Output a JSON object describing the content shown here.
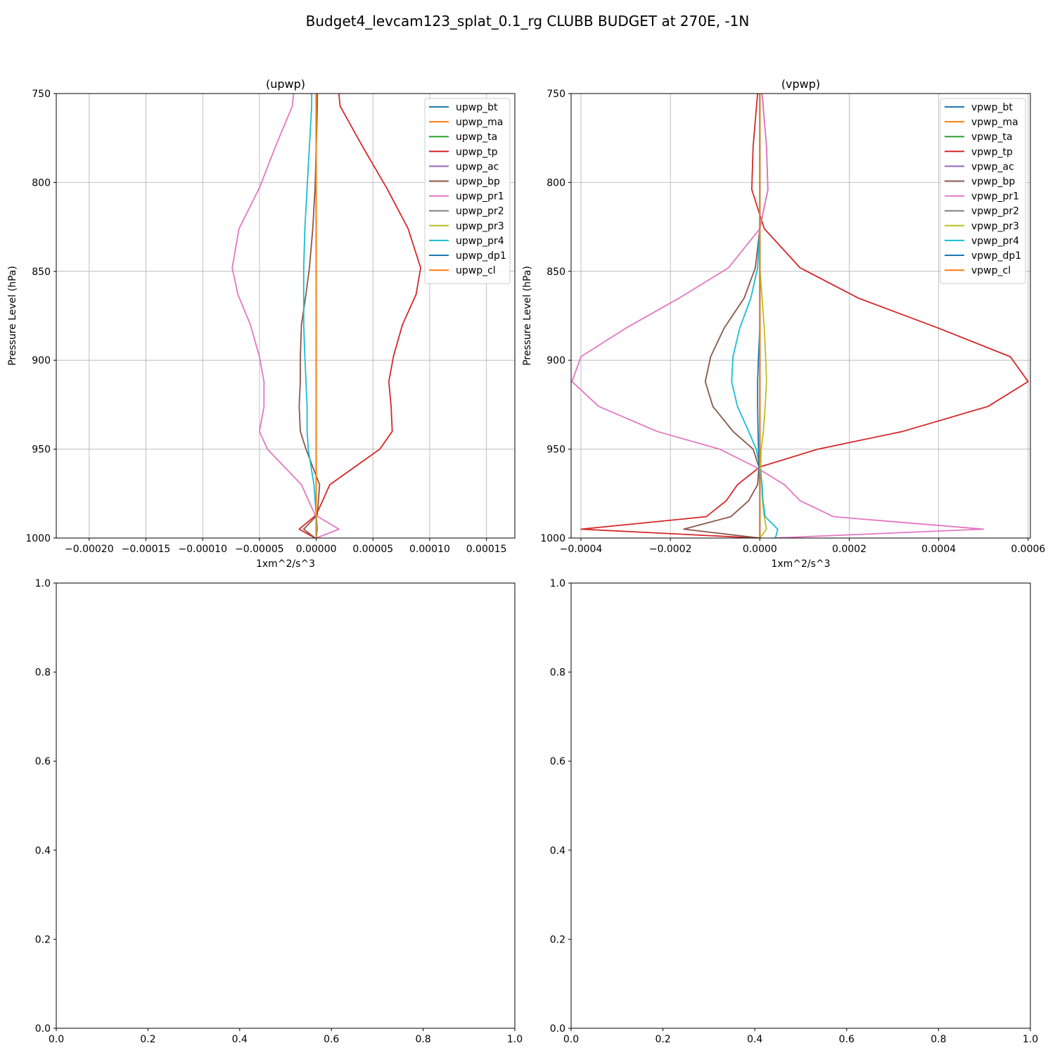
{
  "figure": {
    "suptitle": "Budget4_levcam123_splat_0.1_rg CLUBB BUDGET at 270E, -1N"
  },
  "chart_data": [
    {
      "type": "line",
      "title": "(upwp)",
      "xlabel": "1xm^2/s^3",
      "ylabel": "Pressure Level (hPa)",
      "xlim": [
        -0.000229,
        0.000175
      ],
      "ylim": [
        1000,
        750
      ],
      "y_inverted": true,
      "x_ticks": [
        -0.0002,
        -0.00015,
        -0.0001,
        -5e-05,
        0,
        5e-05,
        0.0001,
        0.00015
      ],
      "x_tick_labels": [
        "−0.00020",
        "−0.00015",
        "−0.00010",
        "−0.00005",
        "0.00000",
        "0.00005",
        "0.00010",
        "0.00015"
      ],
      "y_ticks": [
        750,
        800,
        850,
        900,
        950,
        1000
      ],
      "y_tick_labels": [
        "750",
        "800",
        "850",
        "900",
        "950",
        "1000"
      ],
      "grid": true,
      "legend_position": "top-right",
      "y": [
        750,
        757,
        780,
        803,
        826,
        848,
        863,
        880,
        898,
        912,
        926,
        940,
        950,
        970,
        987,
        995,
        1000
      ],
      "series": [
        {
          "name": "upwp_bt",
          "color": "#1f77b4",
          "values": [
            0,
            0,
            0,
            0,
            0,
            0,
            0,
            0,
            0,
            0,
            0,
            0,
            0,
            0,
            0,
            0,
            0
          ]
        },
        {
          "name": "upwp_ma",
          "color": "#ff7f0e",
          "values": [
            0,
            0,
            0,
            0,
            0,
            0,
            0,
            0,
            0,
            0,
            0,
            0,
            0,
            0,
            0,
            0,
            0
          ]
        },
        {
          "name": "upwp_ta",
          "color": "#2ca02c",
          "values": [
            0,
            0,
            0,
            0,
            0,
            0,
            0,
            0,
            0,
            0,
            0,
            0,
            0,
            0,
            0,
            0,
            0
          ]
        },
        {
          "name": "upwp_tp",
          "color": "#d62728",
          "values": [
            2e-05,
            2.1e-05,
            4.1e-05,
            6.2e-05,
            8.1e-05,
            9.2e-05,
            8.8e-05,
            7.6e-05,
            6.8e-05,
            6.4e-05,
            6.6e-05,
            6.7e-05,
            5.6e-05,
            1.2e-05,
            0,
            -1.5e-05,
            -1e-06
          ]
        },
        {
          "name": "upwp_ac",
          "color": "#9467bd",
          "values": [
            0,
            0,
            0,
            0,
            0,
            0,
            0,
            0,
            0,
            0,
            0,
            0,
            0,
            0,
            0,
            0,
            0
          ]
        },
        {
          "name": "upwp_bp",
          "color": "#8c564b",
          "values": [
            1e-06,
            1e-06,
            0,
            -1e-06,
            -3e-06,
            -6e-06,
            -9e-06,
            -1.3e-05,
            -1.4e-05,
            -1.4e-05,
            -1.5e-05,
            -1.4e-05,
            -9e-06,
            3e-06,
            1e-06,
            -1.1e-05,
            -1e-06
          ]
        },
        {
          "name": "upwp_pr1",
          "color": "#e377c2",
          "values": [
            -2e-05,
            -2.1e-05,
            -3.6e-05,
            -5e-05,
            -6.8e-05,
            -7.4e-05,
            -6.9e-05,
            -5.8e-05,
            -5e-05,
            -4.6e-05,
            -4.6e-05,
            -5e-05,
            -4.3e-05,
            -1.3e-05,
            -1e-06,
            2e-05,
            0
          ]
        },
        {
          "name": "upwp_pr2",
          "color": "#7f7f7f",
          "values": [
            0,
            0,
            0,
            0,
            0,
            0,
            0,
            0,
            0,
            0,
            0,
            0,
            0,
            0,
            0,
            0,
            0
          ]
        },
        {
          "name": "upwp_pr3",
          "color": "#bcbd22",
          "values": [
            0,
            0,
            0,
            0,
            0,
            0,
            0,
            0,
            0,
            0,
            0,
            0,
            0,
            0,
            0,
            0,
            0
          ]
        },
        {
          "name": "upwp_pr4",
          "color": "#17becf",
          "values": [
            -4e-06,
            -4e-06,
            -6e-06,
            -8e-06,
            -1e-05,
            -1.1e-05,
            -1.1e-05,
            -1.1e-05,
            -1e-05,
            -9e-06,
            -8e-06,
            -8e-06,
            -7e-06,
            -2e-06,
            0,
            1e-06,
            0
          ]
        },
        {
          "name": "upwp_dp1",
          "color": "#1f77b4",
          "values": [
            0,
            0,
            0,
            0,
            0,
            0,
            0,
            0,
            0,
            0,
            0,
            0,
            0,
            0,
            0,
            0,
            0
          ]
        },
        {
          "name": "upwp_cl",
          "color": "#ff7f0e",
          "values": [
            0,
            0,
            0,
            0,
            0,
            0,
            0,
            0,
            0,
            0,
            0,
            0,
            0,
            0,
            0,
            0,
            0
          ]
        }
      ]
    },
    {
      "type": "line",
      "title": "(vpwp)",
      "xlabel": "1xm^2/s^3",
      "ylabel": "Pressure Level (hPa)",
      "xlim": [
        -0.000422,
        0.000605
      ],
      "ylim": [
        1000,
        750
      ],
      "y_inverted": true,
      "x_ticks": [
        -0.0004,
        -0.0002,
        0,
        0.0002,
        0.0004,
        0.0006
      ],
      "x_tick_labels": [
        "−0.0004",
        "−0.0002",
        "0.0000",
        "0.0002",
        "0.0004",
        "0.0006"
      ],
      "y_ticks": [
        750,
        800,
        850,
        900,
        950,
        1000
      ],
      "y_tick_labels": [
        "750",
        "800",
        "850",
        "900",
        "950",
        "1000"
      ],
      "grid": true,
      "legend_position": "top-right",
      "y": [
        750,
        780,
        804,
        826,
        848,
        865,
        882,
        898,
        912,
        926,
        940,
        950,
        960,
        970,
        979,
        988,
        995,
        1000
      ],
      "series": [
        {
          "name": "vpwp_bt",
          "color": "#1f77b4",
          "values": [
            0,
            0,
            0,
            0,
            0,
            0,
            0,
            0,
            0,
            0,
            0,
            0,
            0,
            0,
            0,
            0,
            0,
            0
          ]
        },
        {
          "name": "vpwp_ma",
          "color": "#ff7f0e",
          "values": [
            0,
            0,
            0,
            0,
            0,
            0,
            0,
            0,
            0,
            0,
            0,
            0,
            0,
            0,
            0,
            0,
            0,
            0
          ]
        },
        {
          "name": "vpwp_ta",
          "color": "#2ca02c",
          "values": [
            0,
            0,
            0,
            0,
            0,
            0,
            0,
            0,
            0,
            0,
            0,
            0,
            0,
            0,
            0,
            0,
            0,
            0
          ]
        },
        {
          "name": "vpwp_tp",
          "color": "#d62728",
          "values": [
            -5e-06,
            -1.5e-05,
            -1.8e-05,
            1e-05,
            9e-05,
            0.00022,
            0.0004,
            0.00056,
            0.0006,
            0.00051,
            0.00032,
            0.00013,
            0,
            -5e-05,
            -7.5e-05,
            -0.00012,
            -0.0004,
            -5e-06
          ]
        },
        {
          "name": "vpwp_ac",
          "color": "#9467bd",
          "values": [
            5e-06,
            1.5e-05,
            1.8e-05,
            0,
            0,
            0,
            0,
            0,
            0,
            0,
            0,
            0,
            0,
            0,
            0,
            0,
            0,
            0
          ]
        },
        {
          "name": "vpwp_bp",
          "color": "#8c564b",
          "values": [
            0,
            0,
            0,
            0,
            -1e-05,
            -3.5e-05,
            -8e-05,
            -0.00011,
            -0.000122,
            -0.000105,
            -6e-05,
            -1.5e-05,
            -2e-06,
            -5e-06,
            -2.5e-05,
            -6.5e-05,
            -0.00017,
            0
          ]
        },
        {
          "name": "vpwp_pr1",
          "color": "#e377c2",
          "values": [
            5e-06,
            1.5e-05,
            1.8e-05,
            0,
            -7e-05,
            -0.00018,
            -0.0003,
            -0.0004,
            -0.00042,
            -0.00036,
            -0.00023,
            -9e-05,
            -1e-05,
            5.5e-05,
            9e-05,
            0.000165,
            0.0005,
            3e-05
          ]
        },
        {
          "name": "vpwp_pr2",
          "color": "#7f7f7f",
          "values": [
            0,
            0,
            0,
            0,
            0,
            0,
            0,
            0,
            0,
            0,
            0,
            0,
            0,
            0,
            0,
            0,
            0,
            0
          ]
        },
        {
          "name": "vpwp_pr3",
          "color": "#bcbd22",
          "values": [
            0,
            0,
            0,
            0,
            0,
            5e-06,
            1e-05,
            1.3e-05,
            1.5e-05,
            1.2e-05,
            8e-06,
            3e-06,
            2e-06,
            4e-06,
            6e-06,
            1e-05,
            1.5e-05,
            0
          ]
        },
        {
          "name": "vpwp_pr4",
          "color": "#17becf",
          "values": [
            0,
            0,
            0,
            0,
            -5e-06,
            -2e-05,
            -4.5e-05,
            -6e-05,
            -6.3e-05,
            -5e-05,
            -2.5e-05,
            -8e-06,
            0,
            5e-06,
            7e-06,
            1.2e-05,
            4e-05,
            3.5e-05
          ]
        },
        {
          "name": "vpwp_dp1",
          "color": "#1f77b4",
          "values": [
            0,
            0,
            0,
            0,
            0,
            0,
            0,
            -3e-06,
            -5e-06,
            -5e-06,
            -4e-06,
            -3e-06,
            -2e-06,
            0,
            0,
            0,
            0,
            0
          ]
        },
        {
          "name": "vpwp_cl",
          "color": "#ff7f0e",
          "values": [
            0,
            0,
            0,
            0,
            0,
            0,
            0,
            0,
            0,
            0,
            0,
            0,
            0,
            0,
            0,
            0,
            0,
            0
          ]
        }
      ]
    },
    {
      "type": "line",
      "xlim": [
        0,
        1
      ],
      "ylim": [
        0,
        1
      ],
      "x_ticks": [
        0,
        0.2,
        0.4,
        0.6,
        0.8,
        1
      ],
      "x_tick_labels": [
        "0.0",
        "0.2",
        "0.4",
        "0.6",
        "0.8",
        "1.0"
      ],
      "y_ticks": [
        0,
        0.2,
        0.4,
        0.6,
        0.8,
        1
      ],
      "y_tick_labels": [
        "0.0",
        "0.2",
        "0.4",
        "0.6",
        "0.8",
        "1.0"
      ],
      "grid": false,
      "series": []
    },
    {
      "type": "line",
      "xlim": [
        0,
        1
      ],
      "ylim": [
        0,
        1
      ],
      "x_ticks": [
        0,
        0.2,
        0.4,
        0.6,
        0.8,
        1
      ],
      "x_tick_labels": [
        "0.0",
        "0.2",
        "0.4",
        "0.6",
        "0.8",
        "1.0"
      ],
      "y_ticks": [
        0,
        0.2,
        0.4,
        0.6,
        0.8,
        1
      ],
      "y_tick_labels": [
        "0.0",
        "0.2",
        "0.4",
        "0.6",
        "0.8",
        "1.0"
      ],
      "grid": false,
      "series": []
    }
  ]
}
